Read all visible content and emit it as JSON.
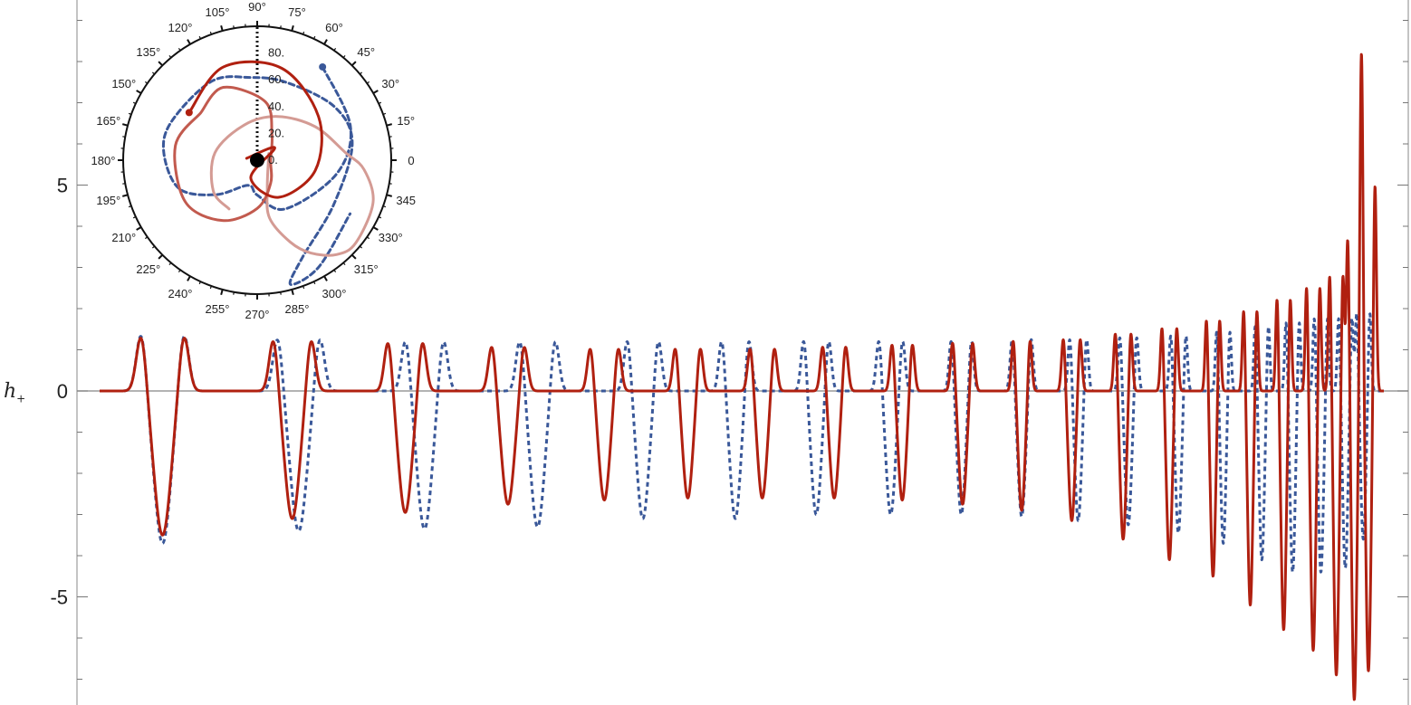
{
  "chart_data": [
    {
      "type": "line",
      "xlabel": "",
      "ylabel": "h",
      "ylabel_subscript": "+",
      "ylim": [
        -7.6,
        9.4
      ],
      "y_ticks": [
        {
          "value": 5,
          "label": "5"
        },
        {
          "value": 0,
          "label": "0"
        },
        {
          "value": -5,
          "label": "-5"
        }
      ],
      "series": [
        {
          "style": "solid",
          "color": "#b02010",
          "t_span": [
            0,
            1
          ],
          "burst_times": [
            0.049,
            0.15,
            0.238,
            0.318,
            0.393,
            0.458,
            0.516,
            0.572,
            0.625,
            0.672,
            0.718,
            0.757,
            0.797,
            0.833,
            0.867,
            0.896,
            0.922,
            0.945,
            0.963,
            0.977,
            0.988
          ],
          "peak_highs": [
            1.4,
            1.3,
            1.25,
            1.15,
            1.1,
            1.1,
            1.1,
            1.15,
            1.2,
            1.25,
            1.3,
            1.35,
            1.5,
            1.65,
            1.85,
            2.1,
            2.4,
            2.7,
            3.0,
            3.9,
            5.2
          ],
          "trough_lows": [
            -3.5,
            -3.1,
            -2.95,
            -2.75,
            -2.65,
            -2.6,
            -2.6,
            -2.6,
            -2.65,
            -2.75,
            -2.9,
            -3.15,
            -3.6,
            -4.1,
            -4.5,
            -5.2,
            -5.8,
            -6.3,
            -6.9,
            -7.5,
            -6.8
          ]
        },
        {
          "style": "dashed",
          "color": "#3a5899",
          "t_span": [
            0,
            1
          ],
          "burst_times": [
            0.049,
            0.155,
            0.253,
            0.341,
            0.423,
            0.495,
            0.558,
            0.616,
            0.671,
            0.718,
            0.762,
            0.801,
            0.84,
            0.875,
            0.905,
            0.929,
            0.951,
            0.97,
            0.984
          ],
          "peak_highs": [
            1.45,
            1.35,
            1.3,
            1.3,
            1.3,
            1.3,
            1.3,
            1.3,
            1.3,
            1.35,
            1.35,
            1.4,
            1.45,
            1.55,
            1.7,
            1.8,
            1.9,
            1.9,
            2.0
          ],
          "trough_lows": [
            -3.7,
            -3.4,
            -3.35,
            -3.3,
            -3.1,
            -3.1,
            -3.0,
            -3.0,
            -3.0,
            -3.05,
            -3.15,
            -3.25,
            -3.45,
            -3.7,
            -4.1,
            -4.4,
            -4.4,
            -4.3,
            -3.6
          ]
        }
      ]
    },
    {
      "type": "polar",
      "angle_labels": [
        "0",
        "15°",
        "30°",
        "45°",
        "60°",
        "75°",
        "90°",
        "105°",
        "120°",
        "135°",
        "150°",
        "165°",
        "180°",
        "195°",
        "210°",
        "225°",
        "240°",
        "255°",
        "270°",
        "285°",
        "300°",
        "315°",
        "330°",
        "345"
      ],
      "radial_labels": [
        "0.",
        "20.",
        "40.",
        "60.",
        "80."
      ],
      "rmax": 100,
      "orbits": [
        {
          "style": "solid",
          "color": "#b02010",
          "points": [
            [
              8,
              170
            ],
            [
              16,
              35
            ],
            [
              14,
              250
            ],
            [
              32,
              300
            ],
            [
              44,
              350
            ],
            [
              56,
              35
            ],
            [
              71,
              75
            ],
            [
              74,
              110
            ],
            [
              62,
              145
            ]
          ]
        },
        {
          "style": "solid",
          "color": "#c25a4e",
          "points": [
            [
              55,
              140
            ],
            [
              62,
              170
            ],
            [
              62,
              210
            ],
            [
              52,
              240
            ],
            [
              36,
              270
            ],
            [
              20,
              300
            ],
            [
              10,
              0
            ],
            [
              22,
              60
            ],
            [
              44,
              82
            ],
            [
              60,
              115
            ],
            [
              55,
              140
            ]
          ]
        },
        {
          "style": "solid",
          "color": "#d49b94",
          "points": [
            [
              10,
              30
            ],
            [
              22,
              290
            ],
            [
              44,
              282
            ],
            [
              66,
              292
            ],
            [
              80,
              300
            ],
            [
              92,
              310
            ],
            [
              96,
              320
            ],
            [
              92,
              340
            ],
            [
              80,
              355
            ],
            [
              66,
              5
            ],
            [
              50,
              30
            ],
            [
              36,
              65
            ],
            [
              28,
              110
            ],
            [
              32,
              170
            ],
            [
              40,
              215
            ],
            [
              42,
              240
            ]
          ]
        },
        {
          "style": "dashed",
          "color": "#3a5899",
          "points": [
            [
              85,
              55
            ],
            [
              74,
              20
            ],
            [
              60,
              350
            ],
            [
              42,
              300
            ],
            [
              26,
              270
            ],
            [
              20,
              250
            ],
            [
              40,
              220
            ],
            [
              62,
              200
            ],
            [
              70,
              175
            ],
            [
              70,
              155
            ],
            [
              68,
              120
            ],
            [
              62,
              95
            ],
            [
              62,
              70
            ],
            [
              70,
              35
            ],
            [
              72,
              10
            ],
            [
              66,
              330
            ],
            [
              80,
              295
            ],
            [
              96,
              285
            ],
            [
              92,
              300
            ],
            [
              80,
              330
            ]
          ]
        }
      ]
    }
  ]
}
